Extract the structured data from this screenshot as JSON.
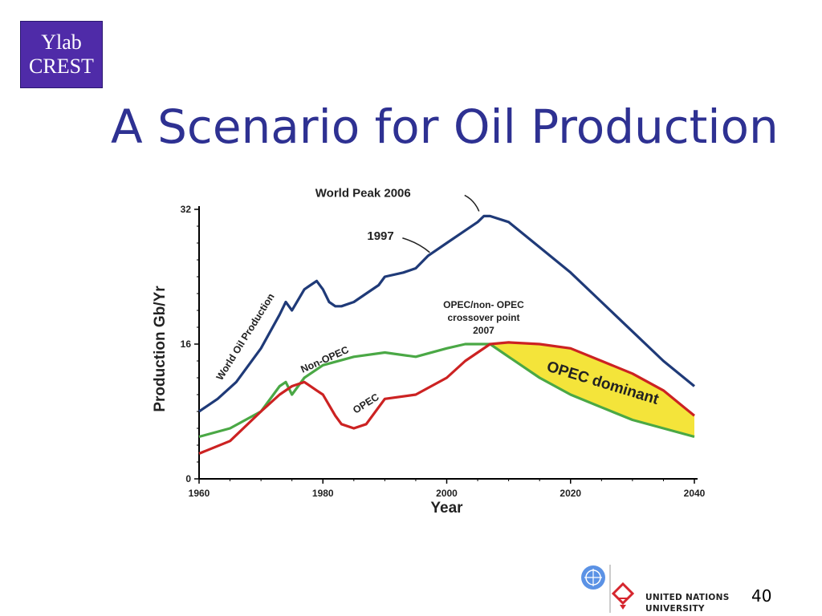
{
  "badge": {
    "line1": "Ylab",
    "line2": "CREST"
  },
  "slide": {
    "title": "A Scenario for Oil Production",
    "number": "40"
  },
  "footer": {
    "org_line1": "UNITED NATIONS",
    "org_line2": "UNIVERSITY"
  },
  "colors": {
    "title": "#2e3192",
    "badge_bg": "#4f2ba8",
    "world": "#1f3a78",
    "non_opec": "#4aa845",
    "opec": "#cc2222",
    "opec_dominant_fill": "#f4e43a"
  },
  "chart_data": {
    "type": "line",
    "ylabel": "Production Gb/Yr",
    "xlabel": "Year",
    "xlim": [
      1960,
      2040
    ],
    "ylim": [
      0,
      32
    ],
    "x_ticks": [
      "1960",
      "1980",
      "2000",
      "2020",
      "2040"
    ],
    "y_ticks": [
      "0",
      "16",
      "32"
    ],
    "series": [
      {
        "name": "World Oil Production",
        "x": [
          1960,
          1963,
          1966,
          1970,
          1973,
          1974,
          1975,
          1977,
          1978,
          1979,
          1980,
          1981,
          1982,
          1983,
          1985,
          1987,
          1989,
          1990,
          1993,
          1995,
          1997,
          2000,
          2003,
          2005,
          2006,
          2007,
          2010,
          2015,
          2020,
          2025,
          2030,
          2035,
          2040
        ],
        "values": [
          8,
          9.5,
          11.5,
          15.5,
          19.5,
          21,
          20,
          22.5,
          23,
          23.5,
          22.5,
          21,
          20.5,
          20.5,
          21,
          22,
          23,
          24,
          24.5,
          25,
          26.5,
          28,
          29.5,
          30.5,
          31.2,
          31.2,
          30.5,
          27.5,
          24.5,
          21,
          17.5,
          14,
          11
        ]
      },
      {
        "name": "Non-OPEC",
        "x": [
          1960,
          1965,
          1970,
          1973,
          1974,
          1975,
          1977,
          1980,
          1985,
          1990,
          1995,
          2000,
          2003,
          2007,
          2010,
          2015,
          2020,
          2025,
          2030,
          2035,
          2040
        ],
        "values": [
          5,
          6,
          8,
          11,
          11.5,
          10,
          12,
          13.5,
          14.5,
          15,
          14.5,
          15.5,
          16,
          16,
          14.5,
          12,
          10,
          8.5,
          7,
          6,
          5
        ]
      },
      {
        "name": "OPEC",
        "x": [
          1960,
          1965,
          1970,
          1973,
          1975,
          1977,
          1979,
          1980,
          1982,
          1983,
          1985,
          1987,
          1990,
          1995,
          2000,
          2003,
          2007,
          2010,
          2015,
          2020,
          2025,
          2030,
          2035,
          2040
        ],
        "values": [
          3,
          4.5,
          8,
          10,
          11,
          11.5,
          10.5,
          10,
          7.5,
          6.5,
          6,
          6.5,
          9.5,
          10,
          12,
          14,
          16,
          16.2,
          16,
          15.5,
          14,
          12.5,
          10.5,
          7.5
        ]
      }
    ],
    "annotations": [
      {
        "text": "World Peak 2006",
        "x": 2006,
        "y": 31.2
      },
      {
        "text": "1997",
        "x": 1997,
        "y": 26.5
      },
      {
        "text": "World Oil Production",
        "x": 1970,
        "y": 15.5
      },
      {
        "text": "Non-OPEC",
        "x": 1985,
        "y": 14.5
      },
      {
        "text": "OPEC",
        "x": 1986,
        "y": 7.5
      },
      {
        "text": "OPEC/non- OPEC",
        "x": 2007,
        "y": 16
      },
      {
        "text": "crossover point",
        "x": 2007,
        "y": 16
      },
      {
        "text": "2007",
        "x": 2007,
        "y": 16
      },
      {
        "text": "OPEC dominant",
        "x": 2028,
        "y": 11
      }
    ]
  }
}
